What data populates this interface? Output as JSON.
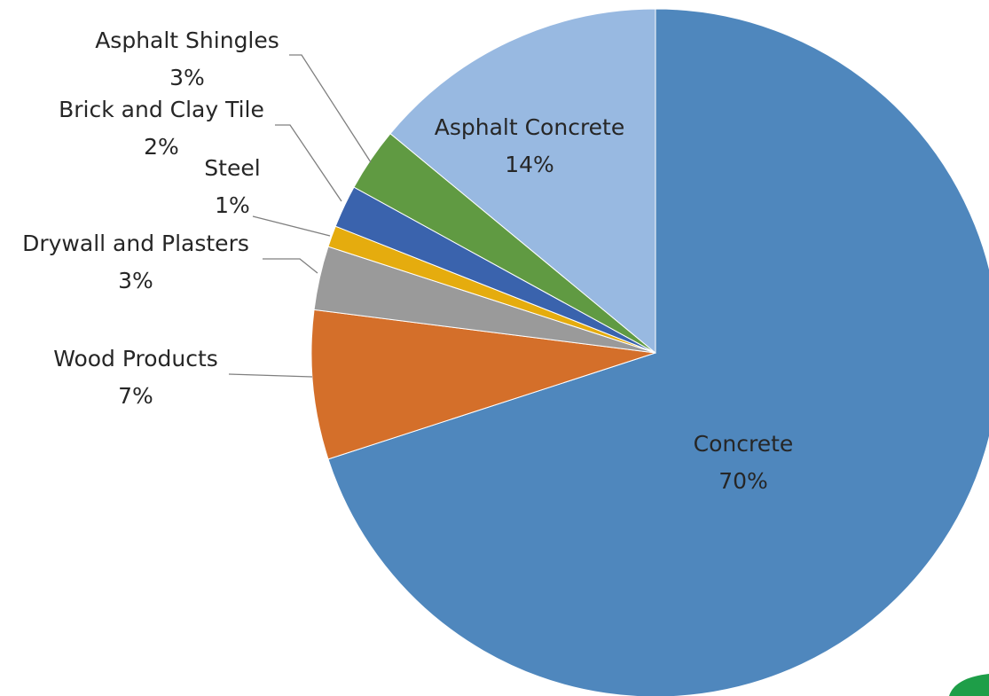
{
  "chart_data": {
    "type": "pie",
    "title": "",
    "start_angle_deg": 0,
    "direction": "clockwise",
    "legend": "none",
    "slices": [
      {
        "name": "Concrete",
        "value": 70,
        "value_label": "70%",
        "color": "#4F87BD"
      },
      {
        "name": "Wood Products",
        "value": 7,
        "value_label": "7%",
        "color": "#D46F2A"
      },
      {
        "name": "Drywall and Plasters",
        "value": 3,
        "value_label": "3%",
        "color": "#9A9A9A"
      },
      {
        "name": "Steel",
        "value": 1,
        "value_label": "1%",
        "color": "#E5AC0E"
      },
      {
        "name": "Brick and Clay Tile",
        "value": 2,
        "value_label": "2%",
        "color": "#3A63AD"
      },
      {
        "name": "Asphalt Shingles",
        "value": 3,
        "value_label": "3%",
        "color": "#609A42"
      },
      {
        "name": "Asphalt Concrete",
        "value": 14,
        "value_label": "14%",
        "color": "#98B9E1"
      }
    ]
  },
  "decoration": {
    "corner_mark_icon": "green-leaf-logo-icon",
    "corner_mark_color": "#1E9E48"
  }
}
